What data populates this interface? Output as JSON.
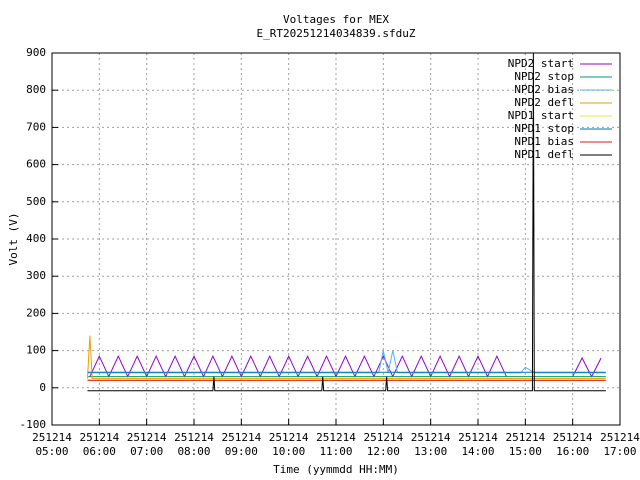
{
  "chart_data": {
    "type": "line",
    "title": "Voltages for MEX",
    "subtitle": "E_RT20251214034839.sfduZ",
    "y_label": "Volt (V)",
    "x_label": "Time (yymmdd HH:MM)",
    "grid": true,
    "legend": "top-right",
    "xlim": [
      5,
      17
    ],
    "ylim": [
      -100,
      900
    ],
    "yticks": [
      -100,
      0,
      100,
      200,
      300,
      400,
      500,
      600,
      700,
      800,
      900
    ],
    "xticks": [
      {
        "value": 5,
        "label": [
          "251214",
          "05:00"
        ]
      },
      {
        "value": 6,
        "label": [
          "251214",
          "06:00"
        ]
      },
      {
        "value": 7,
        "label": [
          "251214",
          "07:00"
        ]
      },
      {
        "value": 8,
        "label": [
          "251214",
          "08:00"
        ]
      },
      {
        "value": 9,
        "label": [
          "251214",
          "09:00"
        ]
      },
      {
        "value": 10,
        "label": [
          "251214",
          "10:00"
        ]
      },
      {
        "value": 11,
        "label": [
          "251214",
          "11:00"
        ]
      },
      {
        "value": 12,
        "label": [
          "251214",
          "12:00"
        ]
      },
      {
        "value": 13,
        "label": [
          "251214",
          "13:00"
        ]
      },
      {
        "value": 14,
        "label": [
          "251214",
          "14:00"
        ]
      },
      {
        "value": 15,
        "label": [
          "251214",
          "15:00"
        ]
      },
      {
        "value": 16,
        "label": [
          "251214",
          "16:00"
        ]
      },
      {
        "value": 17,
        "label": [
          "251214",
          "17:00"
        ]
      }
    ],
    "series": [
      {
        "name": "NPD2 start",
        "color": "#9400d3",
        "x": [
          5.8,
          6.0,
          6.2,
          6.4,
          6.6,
          6.8,
          7.0,
          7.2,
          7.4,
          7.6,
          7.8,
          8.0,
          8.2,
          8.4,
          8.6,
          8.8,
          9.0,
          9.2,
          9.4,
          9.6,
          9.8,
          10.0,
          10.2,
          10.4,
          10.6,
          10.8,
          11.0,
          11.2,
          11.4,
          11.6,
          11.8,
          12.0,
          12.2,
          12.4,
          12.6,
          12.8,
          13.0,
          13.2,
          13.4,
          13.6,
          13.8,
          14.0,
          14.2,
          14.4,
          14.6,
          15.2,
          16.0,
          16.2,
          16.4,
          16.6
        ],
        "values": [
          30,
          85,
          30,
          85,
          30,
          85,
          30,
          85,
          30,
          85,
          30,
          85,
          30,
          85,
          30,
          85,
          30,
          85,
          30,
          85,
          30,
          85,
          30,
          85,
          30,
          85,
          30,
          85,
          30,
          85,
          30,
          85,
          30,
          85,
          30,
          85,
          30,
          85,
          30,
          85,
          30,
          85,
          30,
          85,
          30,
          null,
          30,
          80,
          30,
          80
        ]
      },
      {
        "name": "NPD2 stop",
        "color": "#009e73",
        "x": [
          5.75,
          16.7
        ],
        "values": [
          30,
          30
        ]
      },
      {
        "name": "NPD2 bias",
        "color": "#56b4e9",
        "x": [
          5.75,
          11.9,
          12.0,
          12.1,
          12.2,
          12.3,
          14.9,
          15.0,
          15.2,
          16.7
        ],
        "values": [
          40,
          40,
          100,
          40,
          100,
          40,
          40,
          55,
          40,
          40
        ]
      },
      {
        "name": "NPD2 defl",
        "color": "#e69f00",
        "x": [
          5.75,
          5.8,
          5.85,
          16.7
        ],
        "values": [
          25,
          140,
          25,
          25
        ]
      },
      {
        "name": "NPD1 start",
        "color": "#f0e442",
        "x": [
          5.75,
          16.7
        ],
        "values": [
          23,
          23
        ]
      },
      {
        "name": "NPD1 stop",
        "color": "#0072b2",
        "x": [
          5.75,
          16.7
        ],
        "values": [
          42,
          42
        ]
      },
      {
        "name": "NPD1 bias",
        "color": "#e51e10",
        "x": [
          5.75,
          16.7
        ],
        "values": [
          20,
          20
        ]
      },
      {
        "name": "NPD1 defl",
        "color": "#000000",
        "x": [
          5.75,
          8.4,
          8.42,
          8.44,
          10.7,
          10.72,
          10.74,
          12.05,
          12.07,
          12.09,
          15.15,
          15.17,
          15.19,
          16.7
        ],
        "values": [
          -8,
          -8,
          30,
          -8,
          -8,
          30,
          -8,
          -8,
          30,
          -8,
          -8,
          900,
          -8,
          -8
        ]
      }
    ]
  }
}
